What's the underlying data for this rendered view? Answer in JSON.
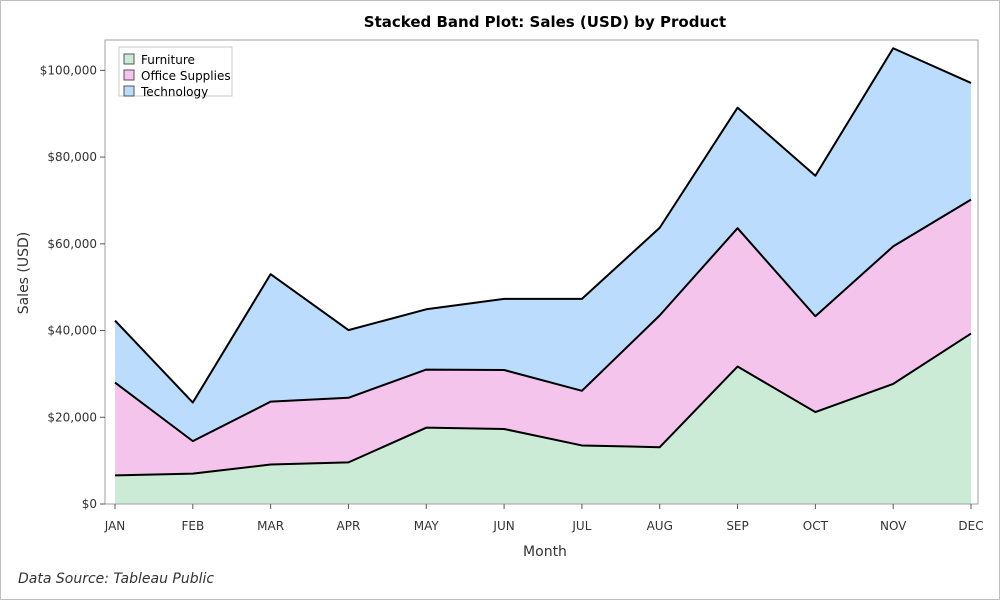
{
  "chart_data": {
    "type": "area",
    "stacked": true,
    "title": "Stacked Band Plot: Sales (USD) by Product",
    "xlabel": "Month",
    "ylabel": "Sales (USD)",
    "categories": [
      "JAN",
      "FEB",
      "MAR",
      "APR",
      "MAY",
      "JUN",
      "JUL",
      "AUG",
      "SEP",
      "OCT",
      "NOV",
      "DEC"
    ],
    "ylim": [
      0,
      107000
    ],
    "yticks": [
      0,
      20000,
      40000,
      60000,
      80000,
      100000
    ],
    "ytick_labels": [
      "$0",
      "$20,000",
      "$40,000",
      "$60,000",
      "$80,000",
      "$100,000"
    ],
    "grid": false,
    "legend_position": "top-left",
    "series": [
      {
        "name": "Furniture",
        "color": "#cbebd7",
        "values": [
          6600,
          7000,
          9100,
          9600,
          17600,
          17300,
          13500,
          13100,
          31700,
          21200,
          27700,
          39300
        ]
      },
      {
        "name": "Office Supplies",
        "color": "#f4c4ec",
        "values": [
          21400,
          7500,
          14500,
          14900,
          13400,
          13600,
          12600,
          30400,
          31900,
          22100,
          31700,
          30900
        ]
      },
      {
        "name": "Technology",
        "color": "#bbdcfc",
        "values": [
          14300,
          8900,
          29400,
          15600,
          13900,
          16400,
          21200,
          20200,
          27800,
          32400,
          45700,
          26900
        ]
      }
    ],
    "footnote": "Data Source: Tableau Public"
  }
}
